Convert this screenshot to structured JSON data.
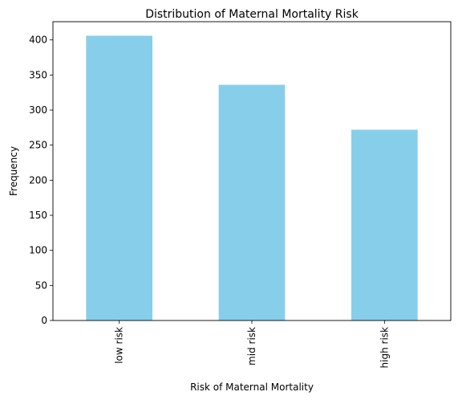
{
  "chart_data": {
    "type": "bar",
    "title": "Distribution of Maternal Mortality Risk",
    "xlabel": "Risk of Maternal Mortality",
    "ylabel": "Frequency",
    "categories": [
      "low risk",
      "mid risk",
      "high risk"
    ],
    "values": [
      406,
      336,
      272
    ],
    "ylim": [
      0,
      426
    ],
    "yticks": [
      0,
      50,
      100,
      150,
      200,
      250,
      300,
      350,
      400
    ],
    "grid": false,
    "legend": "none",
    "bar_color": "#87ceeb",
    "axis_color": "#000000"
  }
}
